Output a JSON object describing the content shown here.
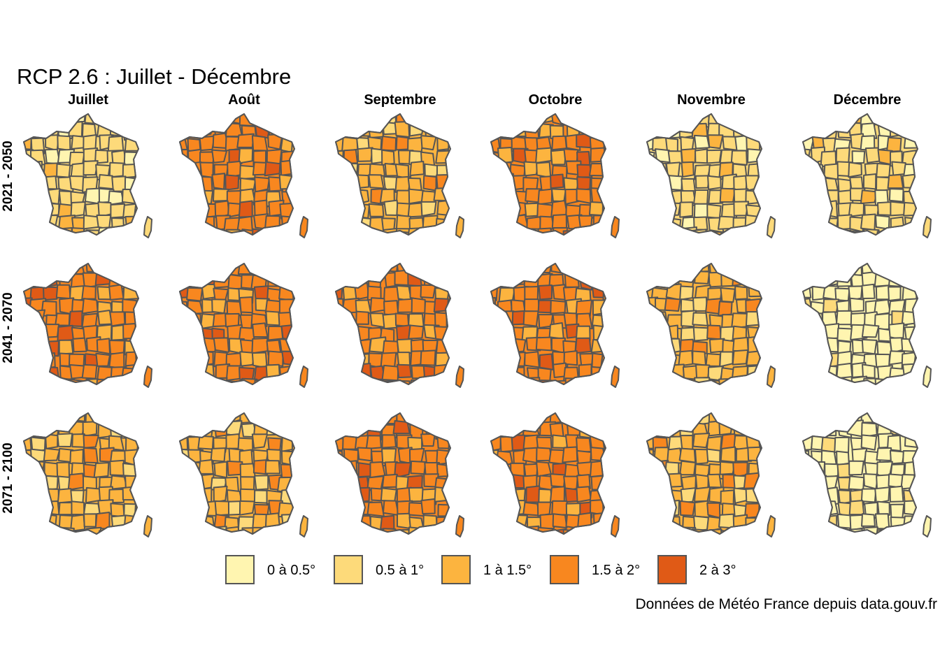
{
  "title": "RCP 2.6 : Juillet - Décembre",
  "source": "Données de Météo France depuis data.gouv.fr",
  "months": [
    "Juillet",
    "Août",
    "Septembre",
    "Octobre",
    "Novembre",
    "Décembre"
  ],
  "periods": [
    "2021 - 2050",
    "2041 - 2070",
    "2071 - 2100"
  ],
  "legend": [
    {
      "label": "0 à 0.5°",
      "color": "#FFF5B0"
    },
    {
      "label": "0.5 à 1°",
      "color": "#FDDA7A"
    },
    {
      "label": "1 à 1.5°",
      "color": "#FCB43F"
    },
    {
      "label": "1.5 à 2°",
      "color": "#F8871F"
    },
    {
      "label": "2 à 3°",
      "color": "#E05A16"
    }
  ],
  "map_levels": {
    "description_units": "dominant temperature class index (0=0 à 0.5°, 4=2 à 3°) per map",
    "grid": [
      [
        1,
        3,
        2,
        3,
        1,
        1
      ],
      [
        3,
        3,
        3,
        3,
        2,
        0
      ],
      [
        2,
        2,
        3,
        3,
        2,
        0
      ]
    ]
  }
}
